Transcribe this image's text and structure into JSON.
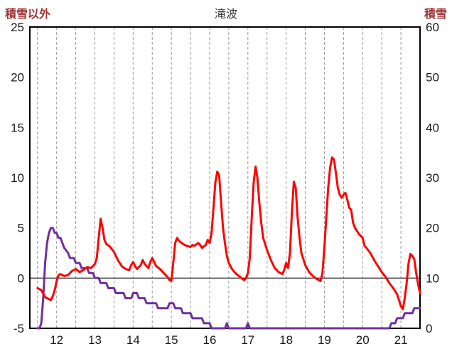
{
  "chart_data": {
    "type": "line",
    "title": "滝波",
    "x_ticks": [
      12,
      13,
      14,
      15,
      16,
      17,
      18,
      19,
      20,
      21
    ],
    "x_range": [
      11.3,
      21.5
    ],
    "left_axis": {
      "label": "積雪以外",
      "range": [
        -5,
        25
      ],
      "ticks": [
        -5,
        0,
        5,
        10,
        15,
        20,
        25
      ]
    },
    "right_axis": {
      "label": "積雪",
      "range": [
        0,
        60
      ],
      "ticks": [
        0,
        10,
        20,
        30,
        40,
        50,
        60
      ]
    },
    "grid": {
      "vertical_step": 0.5,
      "grid_color": "#999999",
      "zero_line_color": "#000000",
      "border_color": "#000000"
    },
    "series": [
      {
        "name": "積雪",
        "axis": "right",
        "color": "#7030A0",
        "points": [
          [
            11.5,
            0
          ],
          [
            11.55,
            0
          ],
          [
            11.6,
            1
          ],
          [
            11.65,
            6
          ],
          [
            11.7,
            13
          ],
          [
            11.75,
            17
          ],
          [
            11.8,
            19
          ],
          [
            11.85,
            20
          ],
          [
            11.9,
            20
          ],
          [
            11.95,
            19
          ],
          [
            12.0,
            19
          ],
          [
            12.05,
            18
          ],
          [
            12.1,
            18
          ],
          [
            12.15,
            17
          ],
          [
            12.2,
            16
          ],
          [
            12.3,
            15
          ],
          [
            12.35,
            14
          ],
          [
            12.45,
            14
          ],
          [
            12.5,
            13
          ],
          [
            12.6,
            13
          ],
          [
            12.65,
            12
          ],
          [
            12.8,
            12
          ],
          [
            12.85,
            11
          ],
          [
            12.95,
            11
          ],
          [
            13.0,
            10
          ],
          [
            13.1,
            10
          ],
          [
            13.15,
            9
          ],
          [
            13.3,
            9
          ],
          [
            13.35,
            8
          ],
          [
            13.5,
            8
          ],
          [
            13.55,
            7
          ],
          [
            13.75,
            7
          ],
          [
            13.8,
            6
          ],
          [
            13.95,
            6
          ],
          [
            14.0,
            7
          ],
          [
            14.1,
            7
          ],
          [
            14.15,
            6
          ],
          [
            14.3,
            6
          ],
          [
            14.35,
            5
          ],
          [
            14.6,
            5
          ],
          [
            14.65,
            4
          ],
          [
            14.9,
            4
          ],
          [
            14.95,
            5
          ],
          [
            15.05,
            5
          ],
          [
            15.1,
            4
          ],
          [
            15.25,
            4
          ],
          [
            15.3,
            3
          ],
          [
            15.5,
            3
          ],
          [
            15.55,
            2
          ],
          [
            15.8,
            2
          ],
          [
            15.85,
            1
          ],
          [
            16.0,
            1
          ],
          [
            16.05,
            0
          ],
          [
            16.4,
            0
          ],
          [
            16.45,
            1
          ],
          [
            16.5,
            0
          ],
          [
            16.95,
            0
          ],
          [
            17.0,
            1
          ],
          [
            17.05,
            0
          ],
          [
            20.7,
            0
          ],
          [
            20.75,
            1
          ],
          [
            20.85,
            1
          ],
          [
            20.9,
            2
          ],
          [
            21.05,
            2
          ],
          [
            21.1,
            3
          ],
          [
            21.3,
            3
          ],
          [
            21.35,
            4
          ],
          [
            21.5,
            4
          ]
        ]
      },
      {
        "name": "積雪以外",
        "axis": "left",
        "color": "#FF0000",
        "points": [
          [
            11.5,
            -1
          ],
          [
            11.6,
            -1.2
          ],
          [
            11.7,
            -1.9
          ],
          [
            11.8,
            -2.1
          ],
          [
            11.85,
            -2.2
          ],
          [
            11.9,
            -1.8
          ],
          [
            11.95,
            -1.2
          ],
          [
            12.0,
            -0.3
          ],
          [
            12.05,
            0.3
          ],
          [
            12.1,
            0.4
          ],
          [
            12.2,
            0.2
          ],
          [
            12.3,
            0.3
          ],
          [
            12.4,
            0.7
          ],
          [
            12.5,
            0.9
          ],
          [
            12.6,
            0.6
          ],
          [
            12.7,
            0.8
          ],
          [
            12.8,
            1.1
          ],
          [
            12.9,
            1.0
          ],
          [
            13.0,
            1.4
          ],
          [
            13.05,
            2.0
          ],
          [
            13.1,
            4.0
          ],
          [
            13.15,
            5.9
          ],
          [
            13.2,
            5.0
          ],
          [
            13.25,
            3.8
          ],
          [
            13.3,
            3.4
          ],
          [
            13.4,
            3.1
          ],
          [
            13.5,
            2.6
          ],
          [
            13.6,
            1.8
          ],
          [
            13.7,
            1.2
          ],
          [
            13.8,
            0.9
          ],
          [
            13.9,
            0.8
          ],
          [
            13.95,
            1.3
          ],
          [
            14.0,
            1.6
          ],
          [
            14.05,
            1.2
          ],
          [
            14.1,
            0.9
          ],
          [
            14.2,
            1.3
          ],
          [
            14.25,
            1.8
          ],
          [
            14.3,
            1.4
          ],
          [
            14.4,
            1.0
          ],
          [
            14.45,
            1.6
          ],
          [
            14.5,
            2.0
          ],
          [
            14.55,
            1.6
          ],
          [
            14.6,
            1.2
          ],
          [
            14.7,
            0.9
          ],
          [
            14.8,
            0.5
          ],
          [
            14.9,
            0.1
          ],
          [
            14.95,
            -0.2
          ],
          [
            15.0,
            -0.3
          ],
          [
            15.05,
            1.5
          ],
          [
            15.1,
            3.5
          ],
          [
            15.15,
            4.0
          ],
          [
            15.2,
            3.7
          ],
          [
            15.3,
            3.4
          ],
          [
            15.4,
            3.2
          ],
          [
            15.5,
            3.1
          ],
          [
            15.55,
            3.3
          ],
          [
            15.6,
            3.2
          ],
          [
            15.7,
            3.5
          ],
          [
            15.75,
            3.3
          ],
          [
            15.8,
            3.0
          ],
          [
            15.9,
            3.3
          ],
          [
            15.95,
            3.8
          ],
          [
            16.0,
            3.5
          ],
          [
            16.05,
            4.5
          ],
          [
            16.1,
            7.0
          ],
          [
            16.15,
            9.5
          ],
          [
            16.2,
            10.6
          ],
          [
            16.25,
            10.2
          ],
          [
            16.3,
            7.5
          ],
          [
            16.35,
            5.0
          ],
          [
            16.4,
            3.5
          ],
          [
            16.45,
            2.2
          ],
          [
            16.5,
            1.5
          ],
          [
            16.6,
            0.8
          ],
          [
            16.7,
            0.4
          ],
          [
            16.8,
            0.1
          ],
          [
            16.9,
            -0.2
          ],
          [
            16.95,
            0.0
          ],
          [
            17.0,
            0.5
          ],
          [
            17.05,
            2.0
          ],
          [
            17.1,
            6.0
          ],
          [
            17.15,
            9.5
          ],
          [
            17.2,
            11.1
          ],
          [
            17.25,
            10.0
          ],
          [
            17.3,
            7.5
          ],
          [
            17.35,
            5.5
          ],
          [
            17.4,
            4.0
          ],
          [
            17.5,
            2.8
          ],
          [
            17.6,
            1.8
          ],
          [
            17.7,
            1.0
          ],
          [
            17.8,
            0.6
          ],
          [
            17.9,
            0.4
          ],
          [
            17.95,
            0.8
          ],
          [
            18.0,
            1.5
          ],
          [
            18.05,
            1.0
          ],
          [
            18.1,
            2.5
          ],
          [
            18.15,
            6.5
          ],
          [
            18.2,
            9.6
          ],
          [
            18.25,
            9.0
          ],
          [
            18.3,
            6.0
          ],
          [
            18.35,
            4.0
          ],
          [
            18.4,
            2.5
          ],
          [
            18.5,
            1.3
          ],
          [
            18.6,
            0.6
          ],
          [
            18.7,
            0.2
          ],
          [
            18.8,
            -0.1
          ],
          [
            18.9,
            -0.3
          ],
          [
            18.95,
            0.5
          ],
          [
            19.0,
            3.0
          ],
          [
            19.05,
            6.0
          ],
          [
            19.1,
            9.0
          ],
          [
            19.15,
            11.0
          ],
          [
            19.2,
            12.0
          ],
          [
            19.25,
            11.8
          ],
          [
            19.3,
            10.5
          ],
          [
            19.35,
            9.0
          ],
          [
            19.4,
            8.3
          ],
          [
            19.45,
            8.0
          ],
          [
            19.5,
            8.3
          ],
          [
            19.55,
            8.5
          ],
          [
            19.6,
            7.8
          ],
          [
            19.65,
            7.0
          ],
          [
            19.7,
            6.8
          ],
          [
            19.75,
            5.5
          ],
          [
            19.8,
            5.0
          ],
          [
            19.85,
            4.7
          ],
          [
            19.9,
            4.4
          ],
          [
            20.0,
            4.0
          ],
          [
            20.05,
            3.2
          ],
          [
            20.1,
            3.0
          ],
          [
            20.2,
            2.5
          ],
          [
            20.3,
            1.8
          ],
          [
            20.4,
            1.2
          ],
          [
            20.5,
            0.6
          ],
          [
            20.6,
            0.1
          ],
          [
            20.7,
            -0.5
          ],
          [
            20.8,
            -1.0
          ],
          [
            20.9,
            -1.6
          ],
          [
            20.95,
            -2.2
          ],
          [
            21.0,
            -2.8
          ],
          [
            21.05,
            -3.1
          ],
          [
            21.1,
            -2.0
          ],
          [
            21.15,
            -0.5
          ],
          [
            21.2,
            1.5
          ],
          [
            21.25,
            2.4
          ],
          [
            21.3,
            2.2
          ],
          [
            21.35,
            1.9
          ],
          [
            21.4,
            0.5
          ],
          [
            21.45,
            -0.6
          ],
          [
            21.5,
            -1.5
          ]
        ]
      }
    ]
  }
}
